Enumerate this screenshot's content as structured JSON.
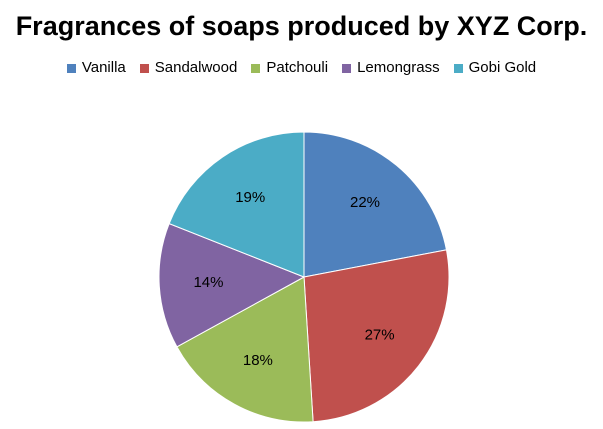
{
  "chart_data": {
    "type": "pie",
    "title": "Fragrances of soaps produced by XYZ Corp.",
    "legend_position": "top",
    "categories": [
      "Vanilla",
      "Sandalwood",
      "Patchouli",
      "Lemongrass",
      "Gobi Gold"
    ],
    "values": [
      22,
      27,
      18,
      14,
      19
    ],
    "labels": [
      "22%",
      "27%",
      "18%",
      "14%",
      "19%"
    ],
    "colors": [
      "#4F81BD",
      "#C0504D",
      "#9BBB59",
      "#8064A2",
      "#4BACC6"
    ]
  }
}
